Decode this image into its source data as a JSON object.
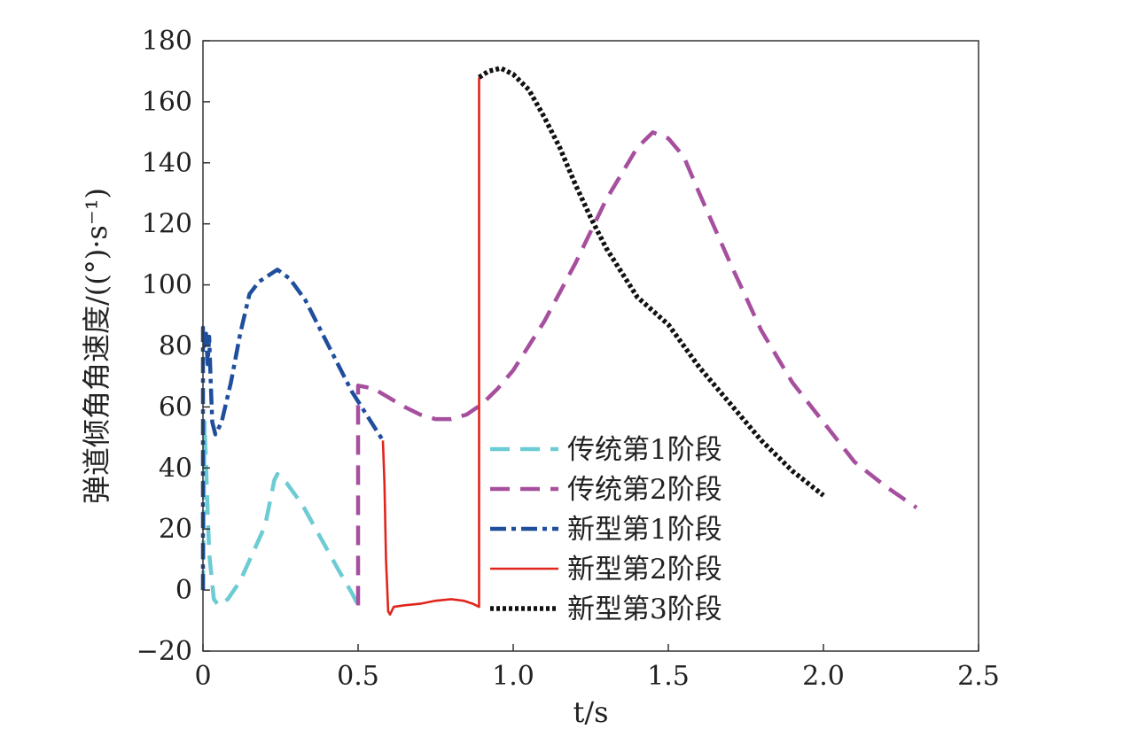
{
  "chart_data": {
    "type": "line",
    "title": "",
    "xlabel": "t/s",
    "ylabel": "弹道倾角角速度/((°)·s⁻¹)",
    "xlim": [
      0,
      2.5
    ],
    "ylim": [
      -20,
      180
    ],
    "x_ticks": [
      0,
      0.5,
      1.0,
      1.5,
      2.0,
      2.5
    ],
    "x_tick_labels": [
      "0",
      "0.5",
      "1.0",
      "1.5",
      "2.0",
      "2.5"
    ],
    "y_ticks": [
      -20,
      0,
      20,
      40,
      60,
      80,
      100,
      120,
      140,
      160,
      180
    ],
    "y_tick_labels": [
      "−20",
      "0",
      "20",
      "40",
      "60",
      "80",
      "100",
      "120",
      "140",
      "160",
      "180"
    ],
    "grid": false,
    "legend_position": "bottom-center",
    "series": [
      {
        "name": "传统第1阶段",
        "color": "#6ccbd3",
        "style": "dashed",
        "points": [
          [
            0.0,
            0
          ],
          [
            0.005,
            55
          ],
          [
            0.02,
            12
          ],
          [
            0.035,
            -3
          ],
          [
            0.05,
            -5
          ],
          [
            0.08,
            -3
          ],
          [
            0.12,
            3
          ],
          [
            0.16,
            12
          ],
          [
            0.2,
            21
          ],
          [
            0.22,
            31
          ],
          [
            0.23,
            36
          ],
          [
            0.24,
            38
          ],
          [
            0.27,
            35
          ],
          [
            0.32,
            28
          ],
          [
            0.38,
            17
          ],
          [
            0.44,
            6
          ],
          [
            0.48,
            -1
          ],
          [
            0.5,
            -5
          ]
        ]
      },
      {
        "name": "传统第2阶段",
        "color": "#a64f9e",
        "style": "dashed",
        "points": [
          [
            0.5,
            -5
          ],
          [
            0.5,
            67
          ],
          [
            0.55,
            66
          ],
          [
            0.6,
            63
          ],
          [
            0.65,
            60
          ],
          [
            0.7,
            57.5
          ],
          [
            0.75,
            56
          ],
          [
            0.8,
            56
          ],
          [
            0.85,
            57.5
          ],
          [
            0.9,
            61
          ],
          [
            0.95,
            66
          ],
          [
            1.0,
            72
          ],
          [
            1.1,
            88
          ],
          [
            1.2,
            107
          ],
          [
            1.3,
            128
          ],
          [
            1.4,
            145
          ],
          [
            1.45,
            150
          ],
          [
            1.5,
            148
          ],
          [
            1.55,
            142
          ],
          [
            1.6,
            130
          ],
          [
            1.7,
            107
          ],
          [
            1.8,
            85
          ],
          [
            1.9,
            68
          ],
          [
            2.0,
            55
          ],
          [
            2.1,
            42
          ],
          [
            2.2,
            34
          ],
          [
            2.3,
            27
          ]
        ]
      },
      {
        "name": "新型第1阶段",
        "color": "#1f4e9c",
        "style": "dashdot",
        "points": [
          [
            0.0,
            0
          ],
          [
            0.0,
            86
          ],
          [
            0.005,
            80
          ],
          [
            0.01,
            84
          ],
          [
            0.015,
            74
          ],
          [
            0.02,
            83
          ],
          [
            0.025,
            68
          ],
          [
            0.03,
            55
          ],
          [
            0.04,
            51
          ],
          [
            0.06,
            55
          ],
          [
            0.09,
            68
          ],
          [
            0.12,
            84
          ],
          [
            0.15,
            97
          ],
          [
            0.18,
            101
          ],
          [
            0.21,
            103
          ],
          [
            0.24,
            105
          ],
          [
            0.28,
            102
          ],
          [
            0.33,
            95
          ],
          [
            0.38,
            85
          ],
          [
            0.43,
            75
          ],
          [
            0.48,
            65
          ],
          [
            0.53,
            57
          ],
          [
            0.58,
            49
          ]
        ]
      },
      {
        "name": "新型第2阶段",
        "color": "#e0251c",
        "style": "solid",
        "points": [
          [
            0.58,
            49
          ],
          [
            0.585,
            35
          ],
          [
            0.59,
            10
          ],
          [
            0.597,
            -7
          ],
          [
            0.603,
            -8
          ],
          [
            0.615,
            -5.5
          ],
          [
            0.65,
            -5
          ],
          [
            0.7,
            -4.5
          ],
          [
            0.75,
            -3.5
          ],
          [
            0.8,
            -3
          ],
          [
            0.84,
            -3.5
          ],
          [
            0.87,
            -4.5
          ],
          [
            0.89,
            -5.5
          ],
          [
            0.89,
            168
          ]
        ]
      },
      {
        "name": "新型第3阶段",
        "color": "#111111",
        "style": "dotted",
        "points": [
          [
            0.89,
            168
          ],
          [
            0.92,
            170
          ],
          [
            0.96,
            171
          ],
          [
            1.0,
            169
          ],
          [
            1.05,
            164
          ],
          [
            1.1,
            155
          ],
          [
            1.15,
            145
          ],
          [
            1.2,
            133
          ],
          [
            1.25,
            122
          ],
          [
            1.3,
            112
          ],
          [
            1.4,
            96
          ],
          [
            1.5,
            87
          ],
          [
            1.6,
            73
          ],
          [
            1.7,
            61
          ],
          [
            1.8,
            49
          ],
          [
            1.9,
            39
          ],
          [
            2.0,
            31
          ]
        ]
      }
    ]
  }
}
